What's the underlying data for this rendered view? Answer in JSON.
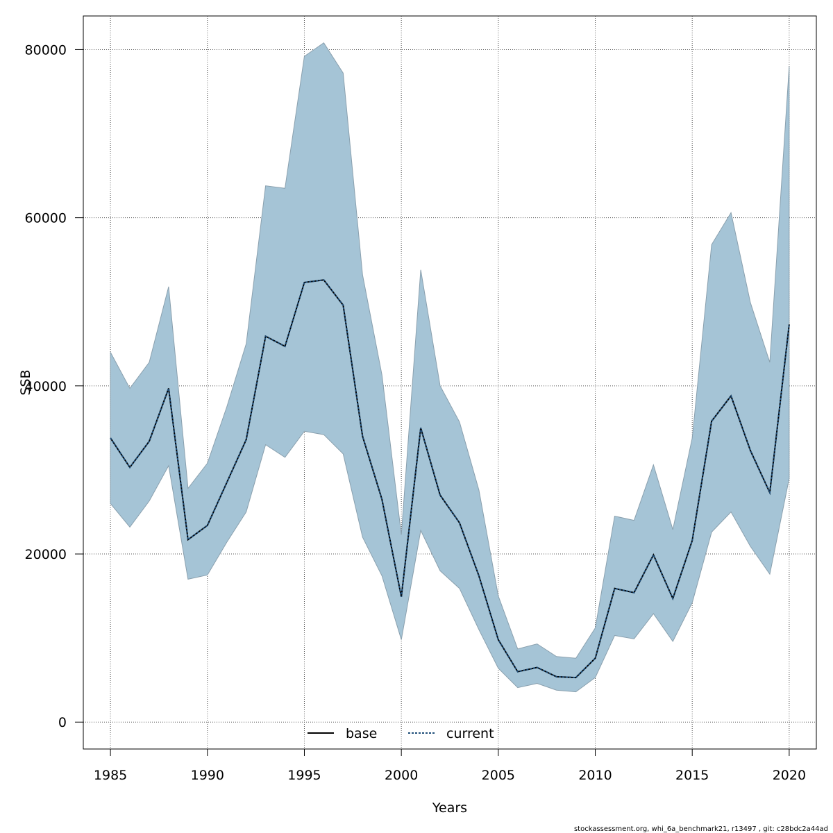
{
  "chart_data": {
    "type": "area",
    "title": "",
    "xlabel": "Years",
    "ylabel": "SSB",
    "xlim": [
      1983.6,
      2021.4
    ],
    "ylim": [
      -3200,
      84000
    ],
    "x_ticks": [
      1985,
      1990,
      1995,
      2000,
      2005,
      2010,
      2015,
      2020
    ],
    "y_ticks": [
      0,
      20000,
      40000,
      60000,
      80000
    ],
    "x_tick_labels": [
      "1985",
      "1990",
      "1995",
      "2000",
      "2005",
      "2010",
      "2015",
      "2020"
    ],
    "y_tick_labels": [
      "0",
      "20000",
      "40000",
      "60000",
      "80000"
    ],
    "grid": true,
    "legend_position": "bottom-center",
    "x": [
      1985,
      1986,
      1987,
      1988,
      1989,
      1990,
      1991,
      1992,
      1993,
      1994,
      1995,
      1996,
      1997,
      1998,
      1999,
      2000,
      2001,
      2002,
      2003,
      2004,
      2005,
      2006,
      2007,
      2008,
      2009,
      2010,
      2011,
      2012,
      2013,
      2014,
      2015,
      2016,
      2017,
      2018,
      2019,
      2020
    ],
    "band": {
      "upper": [
        44000,
        39700,
        42800,
        51800,
        27800,
        30800,
        37500,
        45000,
        63800,
        63500,
        79200,
        80800,
        77200,
        53200,
        41300,
        22300,
        53800,
        40000,
        35700,
        27600,
        15000,
        8700,
        9300,
        7800,
        7600,
        11200,
        24500,
        24000,
        30600,
        22900,
        33800,
        56800,
        60600,
        49900,
        42800,
        78000
      ],
      "lower": [
        26000,
        23200,
        26300,
        30500,
        17000,
        17500,
        21400,
        25000,
        33000,
        31500,
        34600,
        34200,
        31900,
        22000,
        17400,
        9800,
        22800,
        18000,
        15900,
        11000,
        6400,
        4100,
        4600,
        3800,
        3600,
        5300,
        10300,
        9900,
        12900,
        9600,
        14200,
        22600,
        25000,
        20900,
        17600,
        29000
      ]
    },
    "series": [
      {
        "name": "base",
        "values": [
          33800,
          30300,
          33400,
          39700,
          21700,
          23400,
          28500,
          33600,
          45900,
          44700,
          52300,
          52600,
          49600,
          34000,
          26500,
          14900,
          35000,
          27000,
          23700,
          17400,
          9800,
          6000,
          6500,
          5400,
          5300,
          7600,
          15900,
          15400,
          19900,
          14700,
          21600,
          35800,
          38800,
          32300,
          27300,
          47300
        ]
      },
      {
        "name": "current",
        "values": [
          33800,
          30300,
          33400,
          39700,
          21700,
          23400,
          28500,
          33600,
          45900,
          44700,
          52300,
          52600,
          49600,
          34000,
          26500,
          14900,
          35000,
          27000,
          23700,
          17400,
          9800,
          6000,
          6500,
          5400,
          5300,
          7600,
          15900,
          15400,
          19900,
          14700,
          21600,
          35800,
          38800,
          32300,
          27300,
          47300
        ]
      }
    ],
    "colors": {
      "band_fill": "#a5c4d6",
      "band_stroke": "#8aa0ae",
      "base_line": "#000000",
      "current_line": "#1f4e79",
      "grid": "#555555"
    }
  },
  "footnote": "stockassessment.org, whi_6a_benchmark21, r13497 , git: c28bdc2a44ad"
}
